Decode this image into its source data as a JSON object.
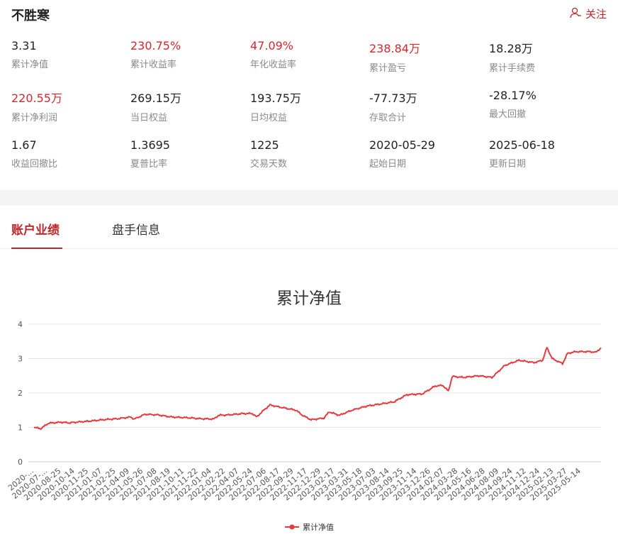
{
  "header": {
    "title": "不胜寒",
    "follow_label": "关注"
  },
  "stats": [
    {
      "value": "3.31",
      "label": "累计净值",
      "red": false
    },
    {
      "value": "230.75%",
      "label": "累计收益率",
      "red": true
    },
    {
      "value": "47.09%",
      "label": "年化收益率",
      "red": true
    },
    {
      "value": "238.84万",
      "label": "累计盈亏",
      "red": true
    },
    {
      "value": "18.28万",
      "label": "累计手续费",
      "red": false
    },
    {
      "value": "220.55万",
      "label": "累计净利润",
      "red": true
    },
    {
      "value": "269.15万",
      "label": "当日权益",
      "red": false
    },
    {
      "value": "193.75万",
      "label": "日均权益",
      "red": false
    },
    {
      "value": "-77.73万",
      "label": "存取合计",
      "red": false
    },
    {
      "value": "-28.17%",
      "label": "最大回撤",
      "red": false
    },
    {
      "value": "1.67",
      "label": "收益回撤比",
      "red": false
    },
    {
      "value": "1.3695",
      "label": "夏普比率",
      "red": false
    },
    {
      "value": "1225",
      "label": "交易天数",
      "red": false
    },
    {
      "value": "2020-05-29",
      "label": "起始日期",
      "red": false
    },
    {
      "value": "2025-06-18",
      "label": "更新日期",
      "red": false
    }
  ],
  "tabs": [
    {
      "label": "账户业绩",
      "active": true
    },
    {
      "label": "盘手信息",
      "active": false
    }
  ],
  "colors": {
    "accent": "#c0272d",
    "line": "#e8393f",
    "value_red": "#d7262d"
  },
  "chart_data": {
    "type": "line",
    "title": "累计净值",
    "ylim": [
      0,
      4
    ],
    "yticks": [
      0,
      1,
      2,
      3,
      4
    ],
    "grid": true,
    "legend": "bottom-center",
    "x_tick_labels": [
      "2020-...",
      "2020-07-...",
      "2020-08-25",
      "2020-10-14",
      "2020-11-25",
      "2021-01-07",
      "2021-02-25",
      "2021-04-09",
      "2021-05-26",
      "2021-07-08",
      "2021-08-19",
      "2021-10-11",
      "2021-11-22",
      "2022-01-04",
      "2022-02-22",
      "2022-04-07",
      "2022-05-24",
      "2022-07-06",
      "2022-08-17",
      "2022-09-29",
      "2022-11-17",
      "2022-12-29",
      "2023-02-17",
      "2023-03-31",
      "2023-05-18",
      "2023-07-03",
      "2023-08-14",
      "2023-09-25",
      "2023-11-14",
      "2023-12-26",
      "2024-02-07",
      "2024-03-28",
      "2024-05-16",
      "2024-06-28",
      "2024-08-09",
      "2024-09-24",
      "2024-11-12",
      "2024-12-24",
      "2025-02-13",
      "2025-03-27",
      "2025-05-14"
    ],
    "series": [
      {
        "name": "累计净值",
        "x": [
          "2020-05-29",
          "2020-06-20",
          "2020-07-15",
          "2020-08-25",
          "2020-09-20",
          "2020-10-14",
          "2020-11-25",
          "2021-01-07",
          "2021-02-25",
          "2021-04-09",
          "2021-04-20",
          "2021-05-26",
          "2021-07-08",
          "2021-08-19",
          "2021-10-11",
          "2021-11-22",
          "2022-01-04",
          "2022-01-20",
          "2022-02-22",
          "2022-04-07",
          "2022-05-10",
          "2022-05-24",
          "2022-06-10",
          "2022-07-06",
          "2022-08-17",
          "2022-09-29",
          "2022-10-20",
          "2022-11-17",
          "2022-12-29",
          "2023-01-15",
          "2023-02-17",
          "2023-03-31",
          "2023-05-18",
          "2023-07-03",
          "2023-08-14",
          "2023-09-25",
          "2023-11-14",
          "2023-12-26",
          "2024-01-20",
          "2024-02-07",
          "2024-02-20",
          "2024-03-28",
          "2024-05-16",
          "2024-06-28",
          "2024-08-09",
          "2024-09-24",
          "2024-11-12",
          "2024-12-10",
          "2024-12-24",
          "2025-01-10",
          "2025-02-13",
          "2025-03-01",
          "2025-03-27",
          "2025-05-14",
          "2025-06-01",
          "2025-06-18"
        ],
        "y": [
          1.0,
          0.96,
          1.12,
          1.15,
          1.13,
          1.15,
          1.18,
          1.22,
          1.25,
          1.3,
          1.24,
          1.38,
          1.36,
          1.3,
          1.28,
          1.25,
          1.24,
          1.35,
          1.36,
          1.4,
          1.4,
          1.3,
          1.45,
          1.65,
          1.57,
          1.5,
          1.35,
          1.22,
          1.27,
          1.45,
          1.35,
          1.5,
          1.62,
          1.68,
          1.74,
          1.95,
          1.97,
          2.2,
          2.22,
          2.05,
          2.48,
          2.45,
          2.5,
          2.45,
          2.8,
          2.95,
          2.88,
          2.95,
          3.32,
          3.0,
          2.85,
          3.15,
          3.2,
          3.2,
          3.18,
          3.31
        ]
      }
    ]
  }
}
